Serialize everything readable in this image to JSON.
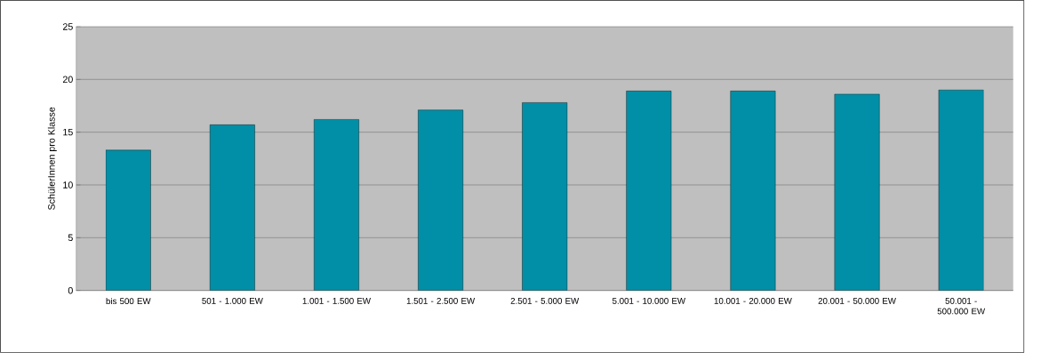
{
  "chart_data": {
    "type": "bar",
    "ylabel": "SchülerInnen pro Klasse",
    "categories": [
      "bis 500 EW",
      "501 - 1.000 EW",
      "1.001 - 1.500 EW",
      "1.501 - 2.500 EW",
      "2.501 - 5.000 EW",
      "5.001 - 10.000 EW",
      "10.001 - 20.000 EW",
      "20.001 - 50.000 EW",
      "50.001 - 500.000 EW"
    ],
    "values": [
      13.3,
      15.7,
      16.2,
      17.1,
      17.8,
      18.9,
      18.9,
      18.6,
      19.0
    ],
    "color": "#008fa6",
    "ylim": [
      0,
      25
    ],
    "yticks": [
      0,
      5,
      10,
      15,
      20,
      25
    ],
    "grid": "y"
  }
}
